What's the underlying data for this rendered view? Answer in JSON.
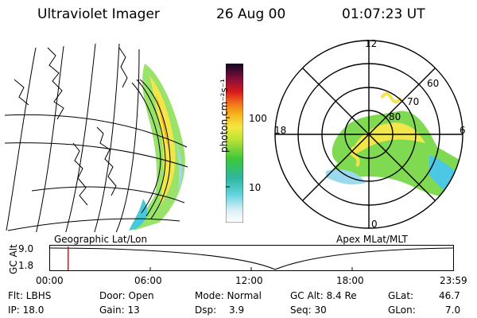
{
  "header": {
    "instrument": "Ultraviolet Imager",
    "date": "26 Aug 00",
    "time": "01:07:23 UT"
  },
  "colorbar": {
    "unit_label": "photon cm⁻²s⁻¹",
    "ticks": [
      "100",
      "10"
    ]
  },
  "left_panel": {
    "caption": "Geographic Lat/Lon"
  },
  "right_panel": {
    "caption": "Apex MLat/MLT",
    "mlt_labels": [
      "12",
      "18",
      "6",
      "0"
    ],
    "lat_labels": [
      "60",
      "70",
      "80"
    ]
  },
  "altitude_plot": {
    "axis_label": "GC Alt",
    "y_ticks": [
      "9.0",
      "1.8"
    ],
    "x_ticks": [
      "00:00",
      "06:00",
      "12:00",
      "18:00",
      "23:59"
    ],
    "marker_time_hours": 1.12,
    "marker_color": "#ff0000"
  },
  "info": {
    "flt": "Flt: LBHS",
    "ip": "IP: 18.0",
    "door": "Door: Open",
    "gain": "Gain: 13",
    "mode": "Mode: Normal",
    "dsp_label": "Dsp:",
    "dsp_value": "3.9",
    "gc_alt": "GC Alt: 8.4 Re",
    "seq": "Seq: 30",
    "glat_label": "GLat:",
    "glat_value": "46.7",
    "glon_label": "GLon:",
    "glon_value": "7.0"
  }
}
